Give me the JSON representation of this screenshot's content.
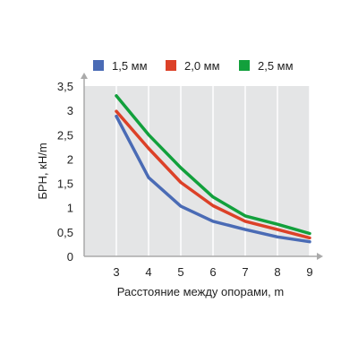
{
  "chart_data": {
    "type": "line",
    "x": [
      3,
      4,
      5,
      6,
      7,
      8,
      9
    ],
    "series": [
      {
        "name": "1,5 мм",
        "color": "#4a6bb5",
        "values": [
          2.88,
          1.62,
          1.03,
          0.72,
          0.55,
          0.4,
          0.3
        ]
      },
      {
        "name": "2,0 мм",
        "color": "#dc4128",
        "values": [
          2.98,
          2.22,
          1.52,
          1.04,
          0.72,
          0.55,
          0.38
        ]
      },
      {
        "name": "2,5 мм",
        "color": "#12a03c",
        "values": [
          3.3,
          2.5,
          1.82,
          1.22,
          0.83,
          0.66,
          0.47
        ]
      }
    ],
    "xlabel": "Расстояние между опорами, m",
    "ylabel": "БРН, кН/m",
    "xlim": [
      2,
      9
    ],
    "ylim": [
      0,
      3.5
    ],
    "x_ticks": [
      "3",
      "4",
      "5",
      "6",
      "7",
      "8",
      "9"
    ],
    "y_ticks": [
      "0",
      "0,5",
      "1",
      "1,5",
      "2",
      "2,5",
      "3",
      "3,5"
    ],
    "grid": true,
    "legend_position": "top",
    "plot_background": "#e4e5e6",
    "axis_color": "#aaaaaa",
    "gridline_color": "#ffffff"
  }
}
